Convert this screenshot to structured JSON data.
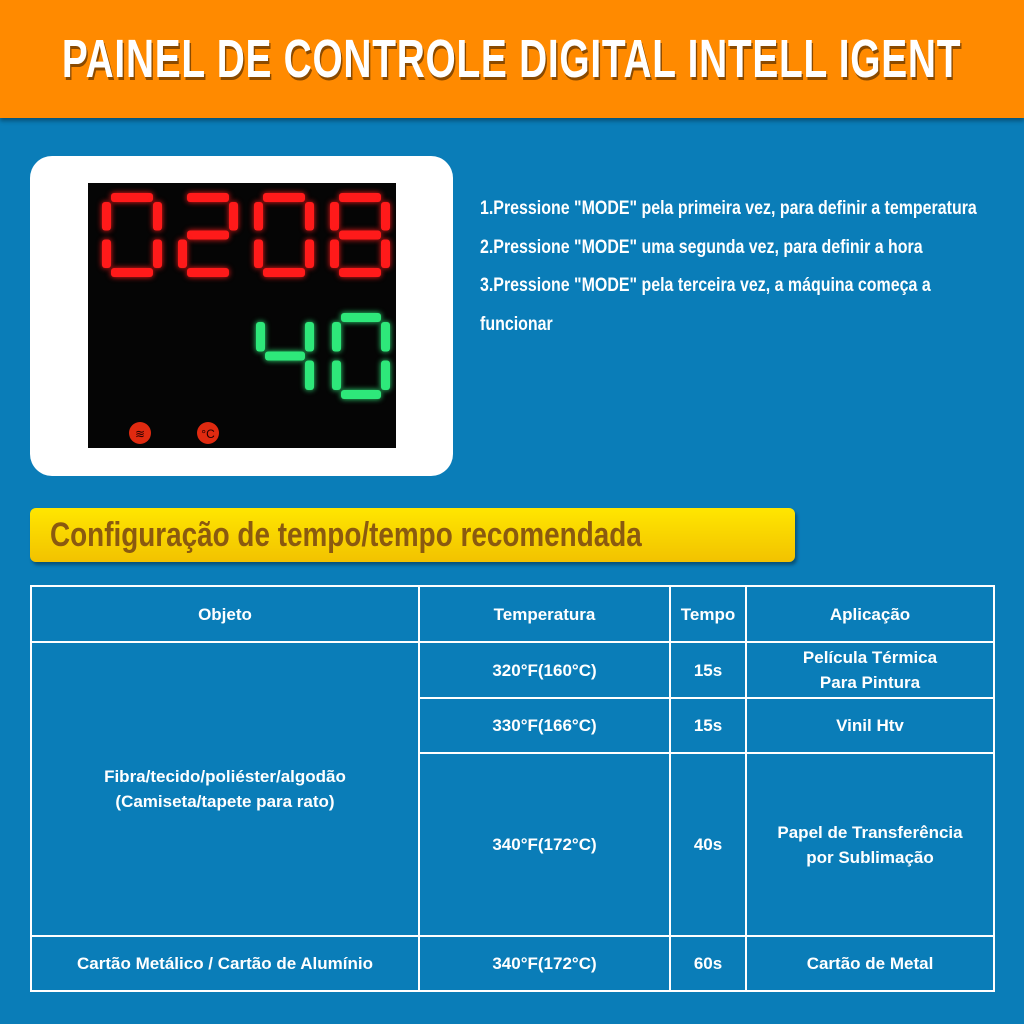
{
  "header": {
    "title": "PAINEL DE CONTROLE DIGITAL INTELL IGENT"
  },
  "display": {
    "top_digits": "0208",
    "bottom_digits": "40",
    "top_color": "#ff1a1a",
    "bottom_color": "#2ee87a",
    "indicators": [
      "heat-icon",
      "celsius-icon"
    ]
  },
  "steps": [
    "1.Pressione \"MODE\" pela primeira vez, para definir a temperatura",
    "2.Pressione \"MODE\" uma segunda vez, para definir a hora",
    "3.Pressione \"MODE\" pela terceira vez, a máquina começa a funcionar"
  ],
  "banner": {
    "title": "Configuração de tempo/tempo recomendada"
  },
  "table": {
    "headers": [
      "Objeto",
      "Temperatura",
      "Tempo",
      "Aplicação"
    ],
    "group1_object": "Fibra/tecido/poliéster/algodão\n(Camiseta/tapete para rato)",
    "rows": [
      {
        "temp": "320°F(160°C)",
        "time": "15s",
        "app": "Película Térmica\nPara Pintura"
      },
      {
        "temp": "330°F(166°C)",
        "time": "15s",
        "app": "Vinil Htv"
      },
      {
        "temp": "340°F(172°C)",
        "time": "40s",
        "app": "Papel de Transferência\npor Sublimação"
      },
      {
        "object": "Cartão Metálico / Cartão de Alumínio",
        "temp": "340°F(172°C)",
        "time": "60s",
        "app": "Cartão de Metal"
      }
    ]
  }
}
